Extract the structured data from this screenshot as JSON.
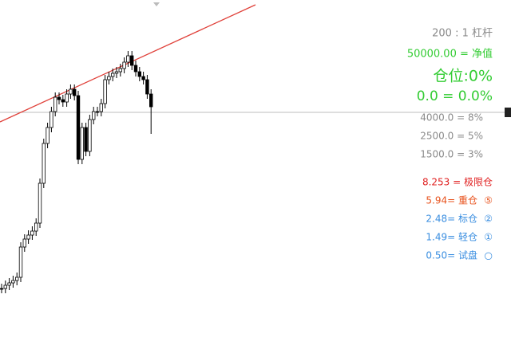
{
  "panel": {
    "leverage": "200 : 1 杠杆",
    "equity": "50000.00 = 净值",
    "position": "仓位:0%",
    "position_value": "0.0 = 0.0%",
    "levels": [
      "4000.0 = 8%",
      "2500.0 = 5%",
      "1500.0 = 3%"
    ],
    "limit": "8.253 = 极限仓",
    "lots": [
      {
        "label": "5.94= 重仓",
        "icon": "⑤"
      },
      {
        "label": "2.48= 标仓",
        "icon": "②"
      },
      {
        "label": "1.49= 轻仓",
        "icon": "①"
      },
      {
        "label": "0.50= 试盘",
        "icon": "○"
      }
    ]
  }
}
